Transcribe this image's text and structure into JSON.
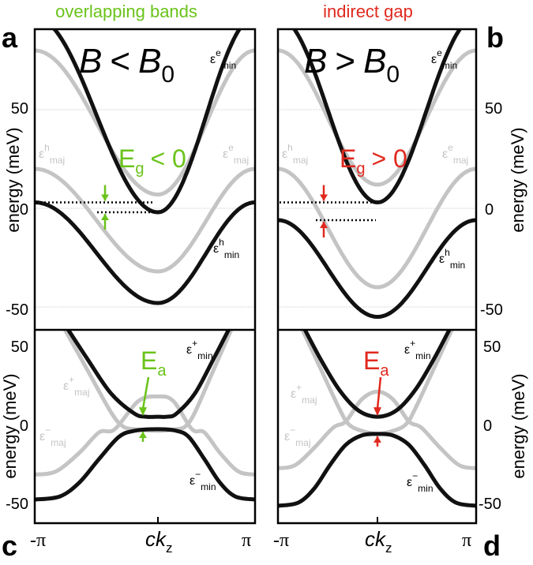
{
  "headers": {
    "left": "overlapping bands",
    "right": "indirect gap",
    "left_color": "#6ac31a",
    "right_color": "#e0291e"
  },
  "panel_labels": {
    "a": "a",
    "b": "b",
    "c": "c",
    "d": "d"
  },
  "conditions": {
    "left": {
      "B": "B",
      "rel": "<",
      "B0": "B",
      "sub": "0"
    },
    "right": {
      "B": "B",
      "rel": ">",
      "B0": "B",
      "sub": "0"
    }
  },
  "gaps": {
    "left": {
      "E": "E",
      "sub": "g",
      "rel": "< 0"
    },
    "right": {
      "E": "E",
      "sub": "g",
      "rel": "> 0"
    }
  },
  "Ea": {
    "E": "E",
    "sub": "a"
  },
  "band_labels": {
    "eps": "ε",
    "e": "e",
    "h": "h",
    "min": "min",
    "maj": "maj",
    "plus": "+",
    "minus": "−"
  },
  "axes": {
    "ylabel": "energy (meV)",
    "xlabel_main": "ck",
    "xlabel_sub": "z",
    "x_ticks": [
      "-π",
      "π"
    ],
    "top_yticks_left": [
      "50",
      "0",
      "-50"
    ],
    "top_yticks_right": [
      "50",
      "0",
      "-50"
    ],
    "bot_yticks_left": [
      "50",
      "0",
      "-50"
    ],
    "bot_yticks_right": [
      "50",
      "0",
      "-50"
    ]
  },
  "colors": {
    "black_band": "#111111",
    "gray_band": "#c4c4c4",
    "grid": "#cccccc",
    "green": "#6ac31a",
    "red": "#e0291e"
  },
  "chart_data": [
    {
      "panel": "a",
      "type": "line",
      "xlabel": "ck_z",
      "ylabel": "energy (meV)",
      "xlim": [
        -3.1416,
        3.1416
      ],
      "ylim": [
        -54,
        96
      ],
      "grid": true,
      "series": [
        {
          "name": "ε^e_min",
          "color": "black",
          "band_min": -2,
          "band_max": 97
        },
        {
          "name": "ε^e_maj",
          "color": "gray",
          "band_min": 7,
          "band_max": 80
        },
        {
          "name": "ε^h_maj",
          "color": "gray",
          "band_min": -32,
          "band_max": 20
        },
        {
          "name": "ε^h_min",
          "color": "black",
          "band_min": -48,
          "band_max": 3
        }
      ],
      "annotations": {
        "gap_top": 3,
        "gap_bottom": -2,
        "Eg": "E_g < 0"
      }
    },
    {
      "panel": "b",
      "type": "line",
      "xlabel": "ck_z",
      "ylabel": "energy (meV)",
      "xlim": [
        -3.1416,
        3.1416
      ],
      "ylim": [
        -54,
        96
      ],
      "grid": true,
      "series": [
        {
          "name": "ε^e_min",
          "color": "black",
          "band_min": 3,
          "band_max": 97
        },
        {
          "name": "ε^e_maj",
          "color": "gray",
          "band_min": 12,
          "band_max": 80
        },
        {
          "name": "ε^h_maj",
          "color": "gray",
          "band_min": -40,
          "band_max": 20
        },
        {
          "name": "ε^h_min",
          "color": "black",
          "band_min": -55,
          "band_max": -6
        }
      ],
      "annotations": {
        "gap_top": 3,
        "gap_bottom": -6,
        "Eg": "E_g > 0"
      }
    },
    {
      "panel": "c",
      "type": "line",
      "xlabel": "ck_z",
      "ylabel": "energy (meV)",
      "xlim": [
        -3.1416,
        3.1416
      ],
      "ylim": [
        -58,
        62
      ],
      "grid": false,
      "series": [
        {
          "name": "ε^+_min",
          "color": "black",
          "points": [
            [
              -2.4,
              65
            ],
            [
              -1.8,
              42
            ],
            [
              -1.2,
              20
            ],
            [
              -0.6,
              7
            ],
            [
              -0.3,
              5
            ],
            [
              0,
              5
            ],
            [
              0.3,
              5
            ],
            [
              0.6,
              7
            ],
            [
              1.2,
              20
            ],
            [
              1.8,
              42
            ],
            [
              2.4,
              65
            ]
          ]
        },
        {
          "name": "ε^+_maj",
          "color": "gray",
          "points": [
            [
              -3.1416,
              -32
            ],
            [
              -2.6,
              -30
            ],
            [
              -2.0,
              -18
            ],
            [
              -1.5,
              -5
            ],
            [
              -1.1,
              -3
            ],
            [
              -0.5,
              15
            ],
            [
              0,
              18
            ],
            [
              0.5,
              15
            ],
            [
              1.1,
              -3
            ],
            [
              1.5,
              -5
            ],
            [
              2.0,
              -18
            ],
            [
              2.6,
              -30
            ],
            [
              3.1416,
              -32
            ]
          ]
        },
        {
          "name": "ε^-_maj",
          "color": "gray",
          "points": [
            [
              -2.4,
              62
            ],
            [
              -1.8,
              35
            ],
            [
              -1.2,
              8
            ],
            [
              -0.9,
              -1
            ],
            [
              -0.6,
              -3
            ],
            [
              0,
              -4
            ],
            [
              0.6,
              -3
            ],
            [
              0.9,
              -1
            ],
            [
              1.2,
              8
            ],
            [
              1.8,
              35
            ],
            [
              2.4,
              62
            ]
          ]
        },
        {
          "name": "ε^-_min",
          "color": "black",
          "points": [
            [
              -3.1416,
              -48
            ],
            [
              -2.5,
              -46
            ],
            [
              -2.0,
              -37
            ],
            [
              -1.5,
              -22
            ],
            [
              -1.0,
              -8
            ],
            [
              -0.6,
              -4
            ],
            [
              0,
              -3
            ],
            [
              0.6,
              -4
            ],
            [
              1.0,
              -8
            ],
            [
              1.5,
              -22
            ],
            [
              2.0,
              -37
            ],
            [
              2.5,
              -46
            ],
            [
              3.1416,
              -48
            ]
          ]
        }
      ],
      "annotations": {
        "Ea_top": 5,
        "Ea_bottom": -3,
        "label": "E_a"
      }
    },
    {
      "panel": "d",
      "type": "line",
      "xlabel": "ck_z",
      "ylabel": "energy (meV)",
      "xlim": [
        -3.1416,
        3.1416
      ],
      "ylim": [
        -58,
        62
      ],
      "grid": false,
      "series": [
        {
          "name": "ε^+_min",
          "color": "black",
          "points": [
            [
              -2.4,
              65
            ],
            [
              -1.8,
              42
            ],
            [
              -1.2,
              22
            ],
            [
              -0.6,
              9
            ],
            [
              0,
              5
            ],
            [
              0.6,
              9
            ],
            [
              1.2,
              22
            ],
            [
              1.8,
              42
            ],
            [
              2.4,
              65
            ]
          ]
        },
        {
          "name": "ε^+_maj",
          "color": "gray",
          "points": [
            [
              -3.1416,
              -28
            ],
            [
              -2.6,
              -26
            ],
            [
              -2.0,
              -15
            ],
            [
              -1.4,
              -2
            ],
            [
              -1.0,
              2
            ],
            [
              -0.5,
              16
            ],
            [
              0,
              21
            ],
            [
              0.5,
              16
            ],
            [
              1.0,
              2
            ],
            [
              1.4,
              -2
            ],
            [
              2.0,
              -15
            ],
            [
              2.6,
              -26
            ],
            [
              3.1416,
              -28
            ]
          ]
        },
        {
          "name": "ε^-_maj",
          "color": "gray",
          "points": [
            [
              -2.4,
              62
            ],
            [
              -1.8,
              36
            ],
            [
              -1.2,
              10
            ],
            [
              -0.9,
              0
            ],
            [
              -0.5,
              -4
            ],
            [
              0,
              -6
            ],
            [
              0.5,
              -4
            ],
            [
              0.9,
              0
            ],
            [
              1.2,
              10
            ],
            [
              1.8,
              36
            ],
            [
              2.4,
              62
            ]
          ]
        },
        {
          "name": "ε^-_min",
          "color": "black",
          "points": [
            [
              -3.1416,
              -52
            ],
            [
              -2.5,
              -50
            ],
            [
              -2.0,
              -41
            ],
            [
              -1.5,
              -26
            ],
            [
              -1.0,
              -13
            ],
            [
              -0.5,
              -7
            ],
            [
              0,
              -6
            ],
            [
              0.5,
              -7
            ],
            [
              1.0,
              -13
            ],
            [
              1.5,
              -26
            ],
            [
              2.0,
              -41
            ],
            [
              2.5,
              -50
            ],
            [
              3.1416,
              -52
            ]
          ]
        }
      ],
      "annotations": {
        "Ea_top": 5,
        "Ea_bottom": -6,
        "label": "E_a"
      }
    }
  ]
}
